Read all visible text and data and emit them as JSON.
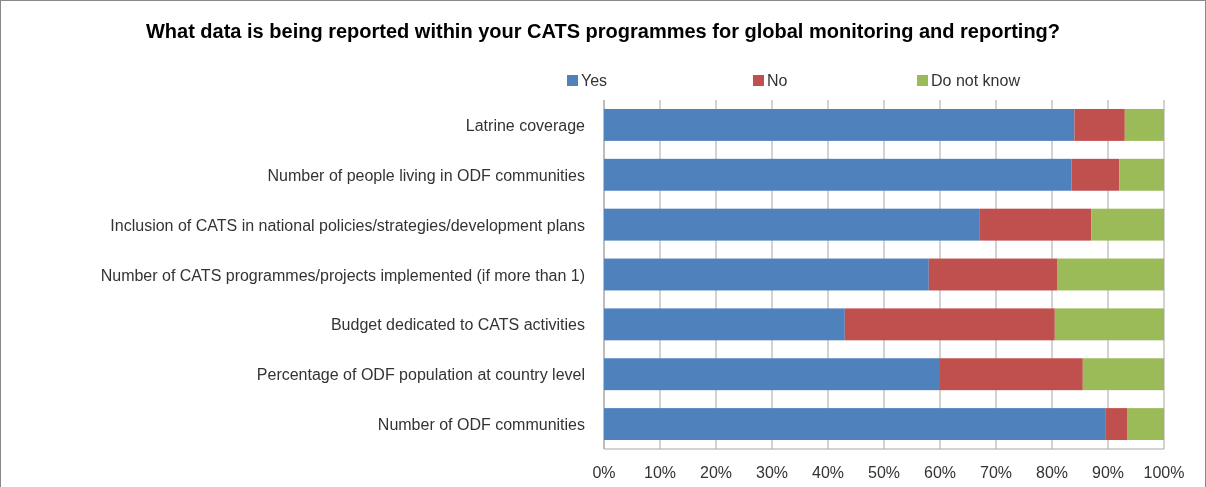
{
  "chart_data": {
    "type": "bar",
    "orientation": "horizontal",
    "stacked": true,
    "title": "What data is being reported within your CATS programmes for global monitoring and reporting?",
    "categories": [
      "Latrine coverage",
      "Number of people living in ODF communities",
      "Inclusion of CATS in national policies/strategies/development plans",
      "Number of CATS programmes/projects implemented (if more than 1)",
      "Budget dedicated to CATS activities",
      "Percentage of ODF population at country level",
      "Number of ODF communities"
    ],
    "series": [
      {
        "name": "Yes",
        "color": "#4f81bd",
        "values": [
          84,
          83.5,
          67,
          58,
          43,
          60,
          89.5
        ]
      },
      {
        "name": "No",
        "color": "#c0504d",
        "values": [
          9,
          8.5,
          20,
          23,
          37.5,
          25.5,
          4
        ]
      },
      {
        "name": "Do not know",
        "color": "#9bbb59",
        "values": [
          7,
          8,
          13,
          19,
          19.5,
          14.5,
          6.5
        ]
      }
    ],
    "xlim": [
      0,
      100
    ],
    "xticks": [
      {
        "value": 0,
        "label": "0%"
      },
      {
        "value": 10,
        "label": "10%"
      },
      {
        "value": 20,
        "label": "20%"
      },
      {
        "value": 30,
        "label": "30%"
      },
      {
        "value": 40,
        "label": "40%"
      },
      {
        "value": 50,
        "label": "50%"
      },
      {
        "value": 60,
        "label": "60%"
      },
      {
        "value": 70,
        "label": "70%"
      },
      {
        "value": 80,
        "label": "80%"
      },
      {
        "value": 90,
        "label": "90%"
      },
      {
        "value": 100,
        "label": "100%"
      }
    ],
    "grid": "x",
    "legend": "top"
  }
}
